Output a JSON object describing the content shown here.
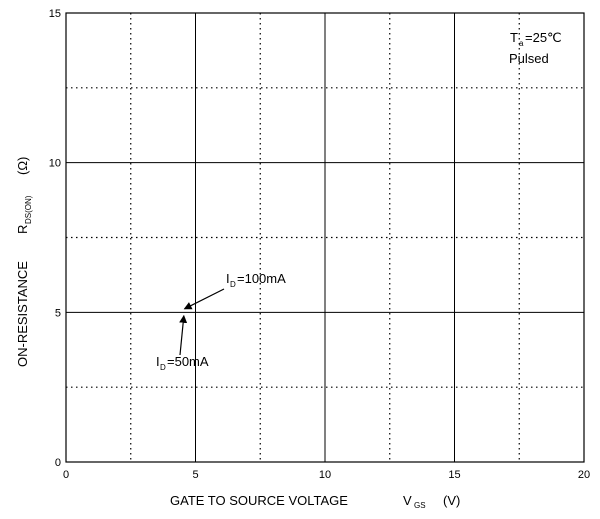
{
  "chart_data": {
    "type": "line",
    "xlabel": "GATE TO SOURCE VOLTAGE",
    "xlabel_symbol": "V",
    "xlabel_symbol_sub": "GS",
    "xlabel_unit": "(V)",
    "ylabel": "ON-RESISTANCE",
    "ylabel_symbol": "R",
    "ylabel_symbol_sub": "DS(ON)",
    "ylabel_unit": "(Ω)",
    "xlim": [
      0,
      20
    ],
    "ylim": [
      0,
      15
    ],
    "x_ticks": [
      0,
      5,
      10,
      15,
      20
    ],
    "y_ticks": [
      0,
      5,
      10,
      15
    ],
    "x_minor_grid": [
      2.5,
      7.5,
      12.5,
      17.5
    ],
    "y_minor_grid": [
      2.5,
      7.5,
      12.5
    ],
    "grid": true,
    "conditions": {
      "line1_main": "T",
      "line1_sub": "a",
      "line1_rest": "=25℃",
      "line2": "Pulsed"
    },
    "annotations": [
      {
        "prefix": "I",
        "sub": "D",
        "rest": "=100mA",
        "target": [
          4.5,
          5.05
        ]
      },
      {
        "prefix": "I",
        "sub": "D",
        "rest": "=50mA",
        "target": [
          4.55,
          4.95
        ]
      }
    ],
    "series": []
  }
}
